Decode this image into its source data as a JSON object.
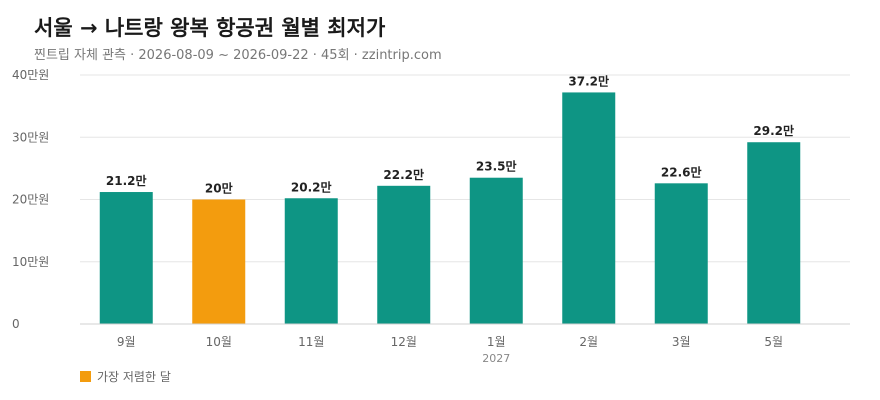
{
  "title": "서울 → 나트랑 왕복 항공권 월별 최저가",
  "subtitle": "찐트립 자체 관측 · 2026-08-09 ~ 2026-09-22 · 45회 · zzintrip.com",
  "colors": {
    "bar": "#0e9584",
    "highlight": "#f39c0e",
    "grid": "#e6e6e6",
    "axis_text": "#666666",
    "label_text": "#222222"
  },
  "legend": {
    "label": "가장 저렴한 달",
    "color": "#f39c0e"
  },
  "chart_data": {
    "type": "bar",
    "title": "서울 → 나트랑 왕복 항공권 월별 최저가",
    "xlabel": "",
    "ylabel": "",
    "categories": [
      "9월",
      "10월",
      "11월",
      "12월",
      "1월",
      "2월",
      "3월",
      "5월"
    ],
    "category_sublabels": [
      "",
      "",
      "",
      "",
      "2027",
      "",
      "",
      ""
    ],
    "values": [
      21.2,
      20,
      20.2,
      22.2,
      23.5,
      37.2,
      22.6,
      29.2
    ],
    "data_labels": [
      "21.2만",
      "20만",
      "20.2만",
      "22.2만",
      "23.5만",
      "37.2만",
      "22.6만",
      "29.2만"
    ],
    "highlight_index": 1,
    "ylim": [
      0,
      40
    ],
    "yticks": [
      0,
      10,
      20,
      30,
      40
    ],
    "ytick_labels": [
      "0",
      "10만원",
      "20만원",
      "30만원",
      "40만원"
    ],
    "grid": true,
    "legend_position": "bottom-left"
  }
}
